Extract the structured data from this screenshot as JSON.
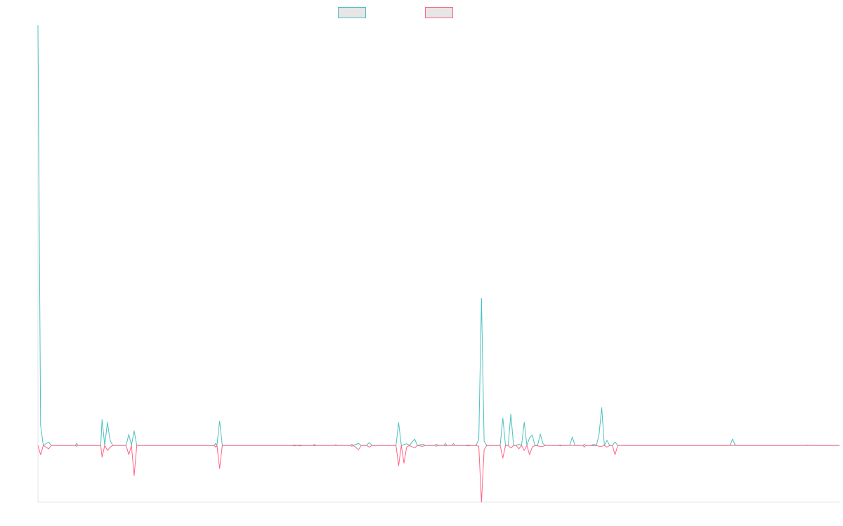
{
  "chart_data": {
    "type": "line",
    "title": "",
    "xlabel": "",
    "ylabel": "",
    "legend_placement": "top-center",
    "grid": false,
    "x_range": [
      0,
      300
    ],
    "ylim": [
      -0.135,
      1.0
    ],
    "series": [
      {
        "color": "#4bc0c0",
        "fill": "rgba(230,230,230,1)",
        "points": [
          [
            0,
            1.0
          ],
          [
            1,
            0.048
          ],
          [
            2,
            0
          ],
          [
            4,
            0.008
          ],
          [
            5,
            0
          ],
          [
            14,
            0
          ],
          [
            14.5,
            0.005
          ],
          [
            15,
            0
          ],
          [
            23.5,
            0
          ],
          [
            24,
            0.062
          ],
          [
            25,
            0
          ],
          [
            26,
            0.055
          ],
          [
            27,
            0.012
          ],
          [
            28,
            0
          ],
          [
            33,
            0
          ],
          [
            34,
            0.026
          ],
          [
            35,
            0
          ],
          [
            36,
            0.035
          ],
          [
            37,
            0
          ],
          [
            66,
            0
          ],
          [
            66.5,
            0.005
          ],
          [
            67,
            0
          ],
          [
            68,
            0.058
          ],
          [
            69,
            0
          ],
          [
            95,
            0
          ],
          [
            96,
            0.001
          ],
          [
            97,
            0
          ],
          [
            98,
            0.001
          ],
          [
            99,
            0
          ],
          [
            103,
            0
          ],
          [
            103.5,
            0.003
          ],
          [
            104,
            0
          ],
          [
            111,
            0
          ],
          [
            111.5,
            0.002
          ],
          [
            112,
            0
          ],
          [
            117,
            0
          ],
          [
            117.5,
            0.003
          ],
          [
            118,
            0
          ],
          [
            120,
            0.005
          ],
          [
            121,
            0
          ],
          [
            123,
            0
          ],
          [
            124,
            0.007
          ],
          [
            125,
            0
          ],
          [
            134,
            0
          ],
          [
            135,
            0.054
          ],
          [
            136,
            0
          ],
          [
            138,
            0.004
          ],
          [
            139,
            0
          ],
          [
            141,
            0.015
          ],
          [
            142,
            0
          ],
          [
            144,
            0.003
          ],
          [
            145,
            0
          ],
          [
            148.5,
            0
          ],
          [
            149,
            0.003
          ],
          [
            150,
            0
          ],
          [
            152,
            0
          ],
          [
            152.5,
            0.005
          ],
          [
            153,
            0
          ],
          [
            155,
            0
          ],
          [
            155.5,
            0.005
          ],
          [
            156,
            0
          ],
          [
            160,
            0
          ],
          [
            161,
            0.001
          ],
          [
            162,
            0
          ],
          [
            164,
            0
          ],
          [
            165,
            0.015
          ],
          [
            166,
            0.35
          ],
          [
            167,
            0.01
          ],
          [
            168,
            0
          ],
          [
            173,
            0
          ],
          [
            174,
            0.065
          ],
          [
            175,
            0
          ],
          [
            176,
            0
          ],
          [
            177,
            0.075
          ],
          [
            178,
            0
          ],
          [
            179,
            0
          ],
          [
            180,
            0.003
          ],
          [
            181,
            0
          ],
          [
            182,
            0.055
          ],
          [
            183,
            0
          ],
          [
            184,
            0.018
          ],
          [
            185,
            0.025
          ],
          [
            186,
            0
          ],
          [
            187,
            0
          ],
          [
            188,
            0.027
          ],
          [
            189,
            0.004
          ],
          [
            190,
            0
          ],
          [
            195,
            0
          ],
          [
            195.5,
            0.001
          ],
          [
            196,
            0
          ],
          [
            199,
            0
          ],
          [
            200,
            0.02
          ],
          [
            201,
            0
          ],
          [
            204,
            0
          ],
          [
            204.5,
            0.003
          ],
          [
            205,
            0
          ],
          [
            207,
            0
          ],
          [
            208,
            0.003
          ],
          [
            209,
            0
          ],
          [
            210,
            0.025
          ],
          [
            211,
            0.09
          ],
          [
            212,
            0
          ],
          [
            213,
            0.012
          ],
          [
            214,
            0
          ],
          [
            215,
            0
          ],
          [
            216,
            0.008
          ],
          [
            217,
            0
          ],
          [
            259,
            0
          ],
          [
            260,
            0.015
          ],
          [
            261,
            0
          ],
          [
            287,
            0
          ],
          [
            288,
            0.001
          ],
          [
            289,
            0
          ],
          [
            300,
            0
          ]
        ]
      },
      {
        "color": "#ff6384",
        "fill": "rgba(230,230,230,1)",
        "points": [
          [
            0,
            0
          ],
          [
            1,
            -0.022
          ],
          [
            2,
            0
          ],
          [
            4,
            -0.008
          ],
          [
            5,
            0
          ],
          [
            14,
            0
          ],
          [
            14.5,
            -0.002
          ],
          [
            15,
            0
          ],
          [
            23.5,
            0
          ],
          [
            24,
            -0.028
          ],
          [
            25,
            0
          ],
          [
            26,
            -0.012
          ],
          [
            27,
            -0.004
          ],
          [
            28,
            0
          ],
          [
            33,
            0
          ],
          [
            34,
            -0.022
          ],
          [
            35,
            0
          ],
          [
            36,
            -0.072
          ],
          [
            37,
            0
          ],
          [
            66,
            0
          ],
          [
            66.5,
            -0.004
          ],
          [
            67,
            0
          ],
          [
            68,
            -0.055
          ],
          [
            69,
            0
          ],
          [
            95,
            0
          ],
          [
            96,
            -0.001
          ],
          [
            97,
            0
          ],
          [
            98,
            -0.001
          ],
          [
            99,
            0
          ],
          [
            103,
            0
          ],
          [
            103.5,
            -0.001
          ],
          [
            104,
            0
          ],
          [
            117,
            0
          ],
          [
            117.5,
            -0.002
          ],
          [
            118,
            0
          ],
          [
            120,
            -0.01
          ],
          [
            121,
            0
          ],
          [
            123,
            0
          ],
          [
            124,
            -0.004
          ],
          [
            125,
            0
          ],
          [
            134,
            0
          ],
          [
            135,
            -0.048
          ],
          [
            136,
            0
          ],
          [
            137,
            -0.042
          ],
          [
            138,
            -0.004
          ],
          [
            139,
            0
          ],
          [
            141,
            -0.006
          ],
          [
            142,
            0
          ],
          [
            144,
            -0.002
          ],
          [
            145,
            0
          ],
          [
            148.5,
            0
          ],
          [
            149,
            -0.002
          ],
          [
            150,
            0
          ],
          [
            152,
            0
          ],
          [
            152.5,
            -0.001
          ],
          [
            153,
            0
          ],
          [
            160,
            0
          ],
          [
            161,
            -0.001
          ],
          [
            162,
            0
          ],
          [
            164,
            0
          ],
          [
            165,
            -0.002
          ],
          [
            166,
            -0.135
          ],
          [
            167,
            -0.01
          ],
          [
            168,
            0
          ],
          [
            173,
            0
          ],
          [
            174,
            -0.03
          ],
          [
            175,
            0
          ],
          [
            176,
            0
          ],
          [
            177,
            -0.006
          ],
          [
            178,
            0
          ],
          [
            179,
            0
          ],
          [
            180,
            -0.008
          ],
          [
            181,
            0
          ],
          [
            182,
            -0.012
          ],
          [
            183,
            0
          ],
          [
            184,
            -0.022
          ],
          [
            185,
            -0.004
          ],
          [
            186,
            0
          ],
          [
            188,
            -0.002
          ],
          [
            189,
            -0.002
          ],
          [
            190,
            0
          ],
          [
            195,
            0
          ],
          [
            195.5,
            -0.001
          ],
          [
            196,
            0
          ],
          [
            204,
            0
          ],
          [
            204.5,
            -0.004
          ],
          [
            205,
            0
          ],
          [
            207,
            0
          ],
          [
            208,
            -0.001
          ],
          [
            209,
            0
          ],
          [
            210,
            -0.002
          ],
          [
            211,
            -0.002
          ],
          [
            212,
            0
          ],
          [
            213,
            -0.004
          ],
          [
            214,
            0
          ],
          [
            215,
            0
          ],
          [
            216,
            -0.022
          ],
          [
            217,
            0
          ],
          [
            300,
            0
          ]
        ]
      }
    ]
  }
}
